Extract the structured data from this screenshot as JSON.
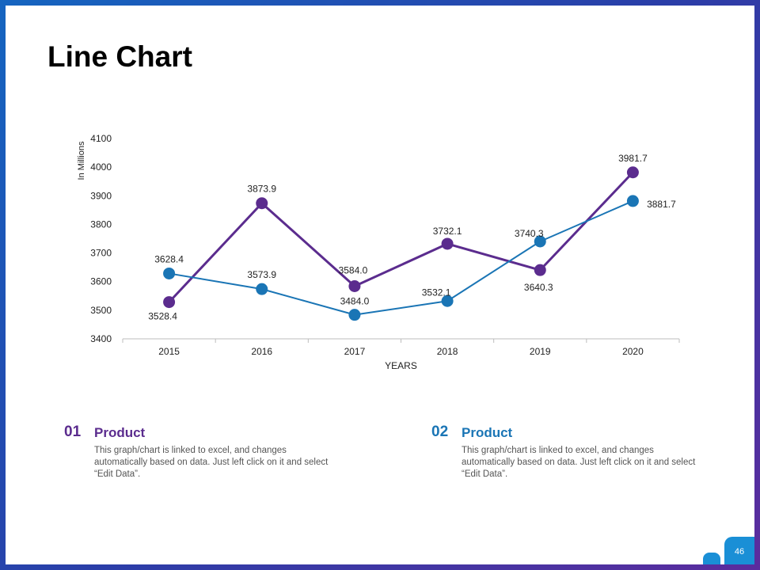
{
  "page": {
    "title": "Line Chart",
    "number": "46"
  },
  "chart_data": {
    "type": "line",
    "title": "",
    "xlabel": "YEARS",
    "ylabel": "In Millions",
    "categories": [
      "2015",
      "2016",
      "2017",
      "2018",
      "2019",
      "2020"
    ],
    "ylim": [
      3400,
      4100
    ],
    "yticks": [
      3400,
      3500,
      3600,
      3700,
      3800,
      3900,
      4000,
      4100
    ],
    "grid": false,
    "legend": "none",
    "series": [
      {
        "name": "Product 01",
        "color": "#5b2c8e",
        "values": [
          3528.4,
          3873.9,
          3584.0,
          3732.1,
          3640.3,
          3981.7
        ],
        "labels": [
          "3528.4",
          "3873.9",
          "3584.0",
          "3732.1",
          "3640.3",
          "3981.7"
        ]
      },
      {
        "name": "Product 02",
        "color": "#1a75b5",
        "values": [
          3628.4,
          3573.9,
          3484.0,
          3532.1,
          3740.3,
          3881.7
        ],
        "labels": [
          "3628.4",
          "3573.9",
          "3484.0",
          "3532.1",
          "3740.3",
          "3881.7"
        ]
      }
    ]
  },
  "products": [
    {
      "number": "01",
      "title": "Product",
      "description": "This graph/chart is linked to excel, and changes automatically based on data. Just left click on it and select “Edit Data”.",
      "color": "#5b2c8e"
    },
    {
      "number": "02",
      "title": "Product",
      "description": "This graph/chart is linked to excel, and changes automatically based on data. Just left click on it and select “Edit Data”.",
      "color": "#1a75b5"
    }
  ]
}
